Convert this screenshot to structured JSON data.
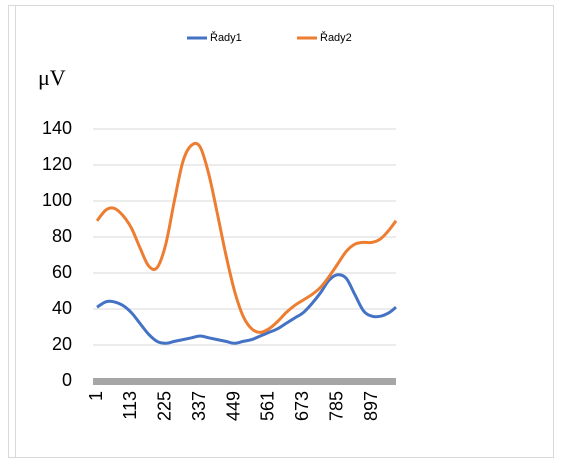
{
  "chart_data": {
    "type": "line",
    "y_label": "μV",
    "x": [
      1,
      30,
      56,
      85,
      113,
      141,
      169,
      197,
      225,
      253,
      281,
      309,
      337,
      365,
      393,
      421,
      449,
      477,
      505,
      533,
      561,
      589,
      617,
      645,
      673,
      701,
      729,
      757,
      785,
      813,
      841,
      869,
      897,
      925,
      953,
      975
    ],
    "series": [
      {
        "name": "Řady1",
        "color": "#4472c4",
        "values": [
          41,
          44,
          44,
          42,
          38,
          32,
          26,
          22,
          21,
          22,
          23,
          24,
          25,
          24,
          23,
          22,
          21,
          22,
          23,
          25,
          27,
          29,
          32,
          35,
          38,
          43,
          49,
          56,
          59,
          57,
          48,
          39,
          36,
          36,
          38,
          41
        ]
      },
      {
        "name": "Řady2",
        "color": "#ed7d31",
        "values": [
          89,
          95,
          96,
          92,
          85,
          74,
          64,
          63,
          76,
          100,
          122,
          131,
          130,
          115,
          93,
          70,
          50,
          36,
          29,
          27,
          29,
          33,
          38,
          42,
          45,
          48,
          52,
          58,
          65,
          72,
          76,
          77,
          77,
          79,
          84,
          89
        ]
      }
    ],
    "xlim": [
      1,
      975
    ],
    "xticks": [
      1,
      113,
      225,
      337,
      449,
      561,
      673,
      785,
      897
    ],
    "ylim": [
      0,
      140
    ],
    "yticks": [
      0,
      20,
      40,
      60,
      80,
      100,
      120,
      140
    ],
    "grid": true,
    "legend": "top"
  }
}
